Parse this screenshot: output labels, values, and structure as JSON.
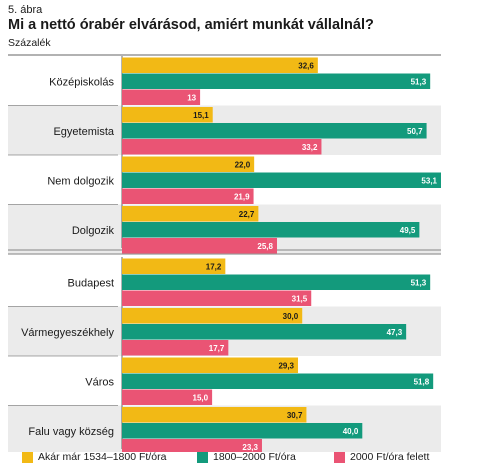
{
  "figure_label": "5. ábra",
  "title": "Mi a nettó órabér elvárásod, amiért munkát vállalnál?",
  "unit_label": "Százalék",
  "colors": {
    "s1": "#f2b915",
    "s2": "#139a7c",
    "s3": "#ea5474",
    "row_band": "#ebebeb",
    "separator": "#999999"
  },
  "chart_data": {
    "type": "bar",
    "orientation": "horizontal",
    "categories": [
      "Középiskolás",
      "Egyetemista",
      "Nem dolgozik",
      "Dolgozik",
      "Budapest",
      "Vármegyeszékhely",
      "Város",
      "Falu vagy község"
    ],
    "groups": [
      [
        "Középiskolás",
        "Egyetemista",
        "Nem dolgozik",
        "Dolgozik"
      ],
      [
        "Budapest",
        "Vármegyeszékhely",
        "Város",
        "Falu vagy község"
      ]
    ],
    "series": [
      {
        "name": "Akár már 1534–1800 Ft/óra",
        "values": [
          32.6,
          15.1,
          22.0,
          22.7,
          17.2,
          30.0,
          29.3,
          30.7
        ],
        "labels": [
          "32,6",
          "15,1",
          "22,0",
          "22,7",
          "17,2",
          "30,0",
          "29,3",
          "30,7"
        ]
      },
      {
        "name": "1800–2000 Ft/óra",
        "values": [
          51.3,
          50.7,
          53.1,
          49.5,
          51.3,
          47.3,
          51.8,
          40.0
        ],
        "labels": [
          "51,3",
          "50,7",
          "53,1",
          "49,5",
          "51,3",
          "47,3",
          "51,8",
          "40,0"
        ]
      },
      {
        "name": "2000 Ft/óra felett",
        "values": [
          13,
          33.2,
          21.9,
          25.8,
          31.5,
          17.7,
          15.0,
          23.3
        ],
        "labels": [
          "13",
          "33,2",
          "21,9",
          "25,8",
          "31,5",
          "17,7",
          "15,0",
          "23,3"
        ]
      }
    ],
    "xlim": [
      0,
      53.1
    ],
    "grid": false,
    "legend_position": "bottom"
  }
}
